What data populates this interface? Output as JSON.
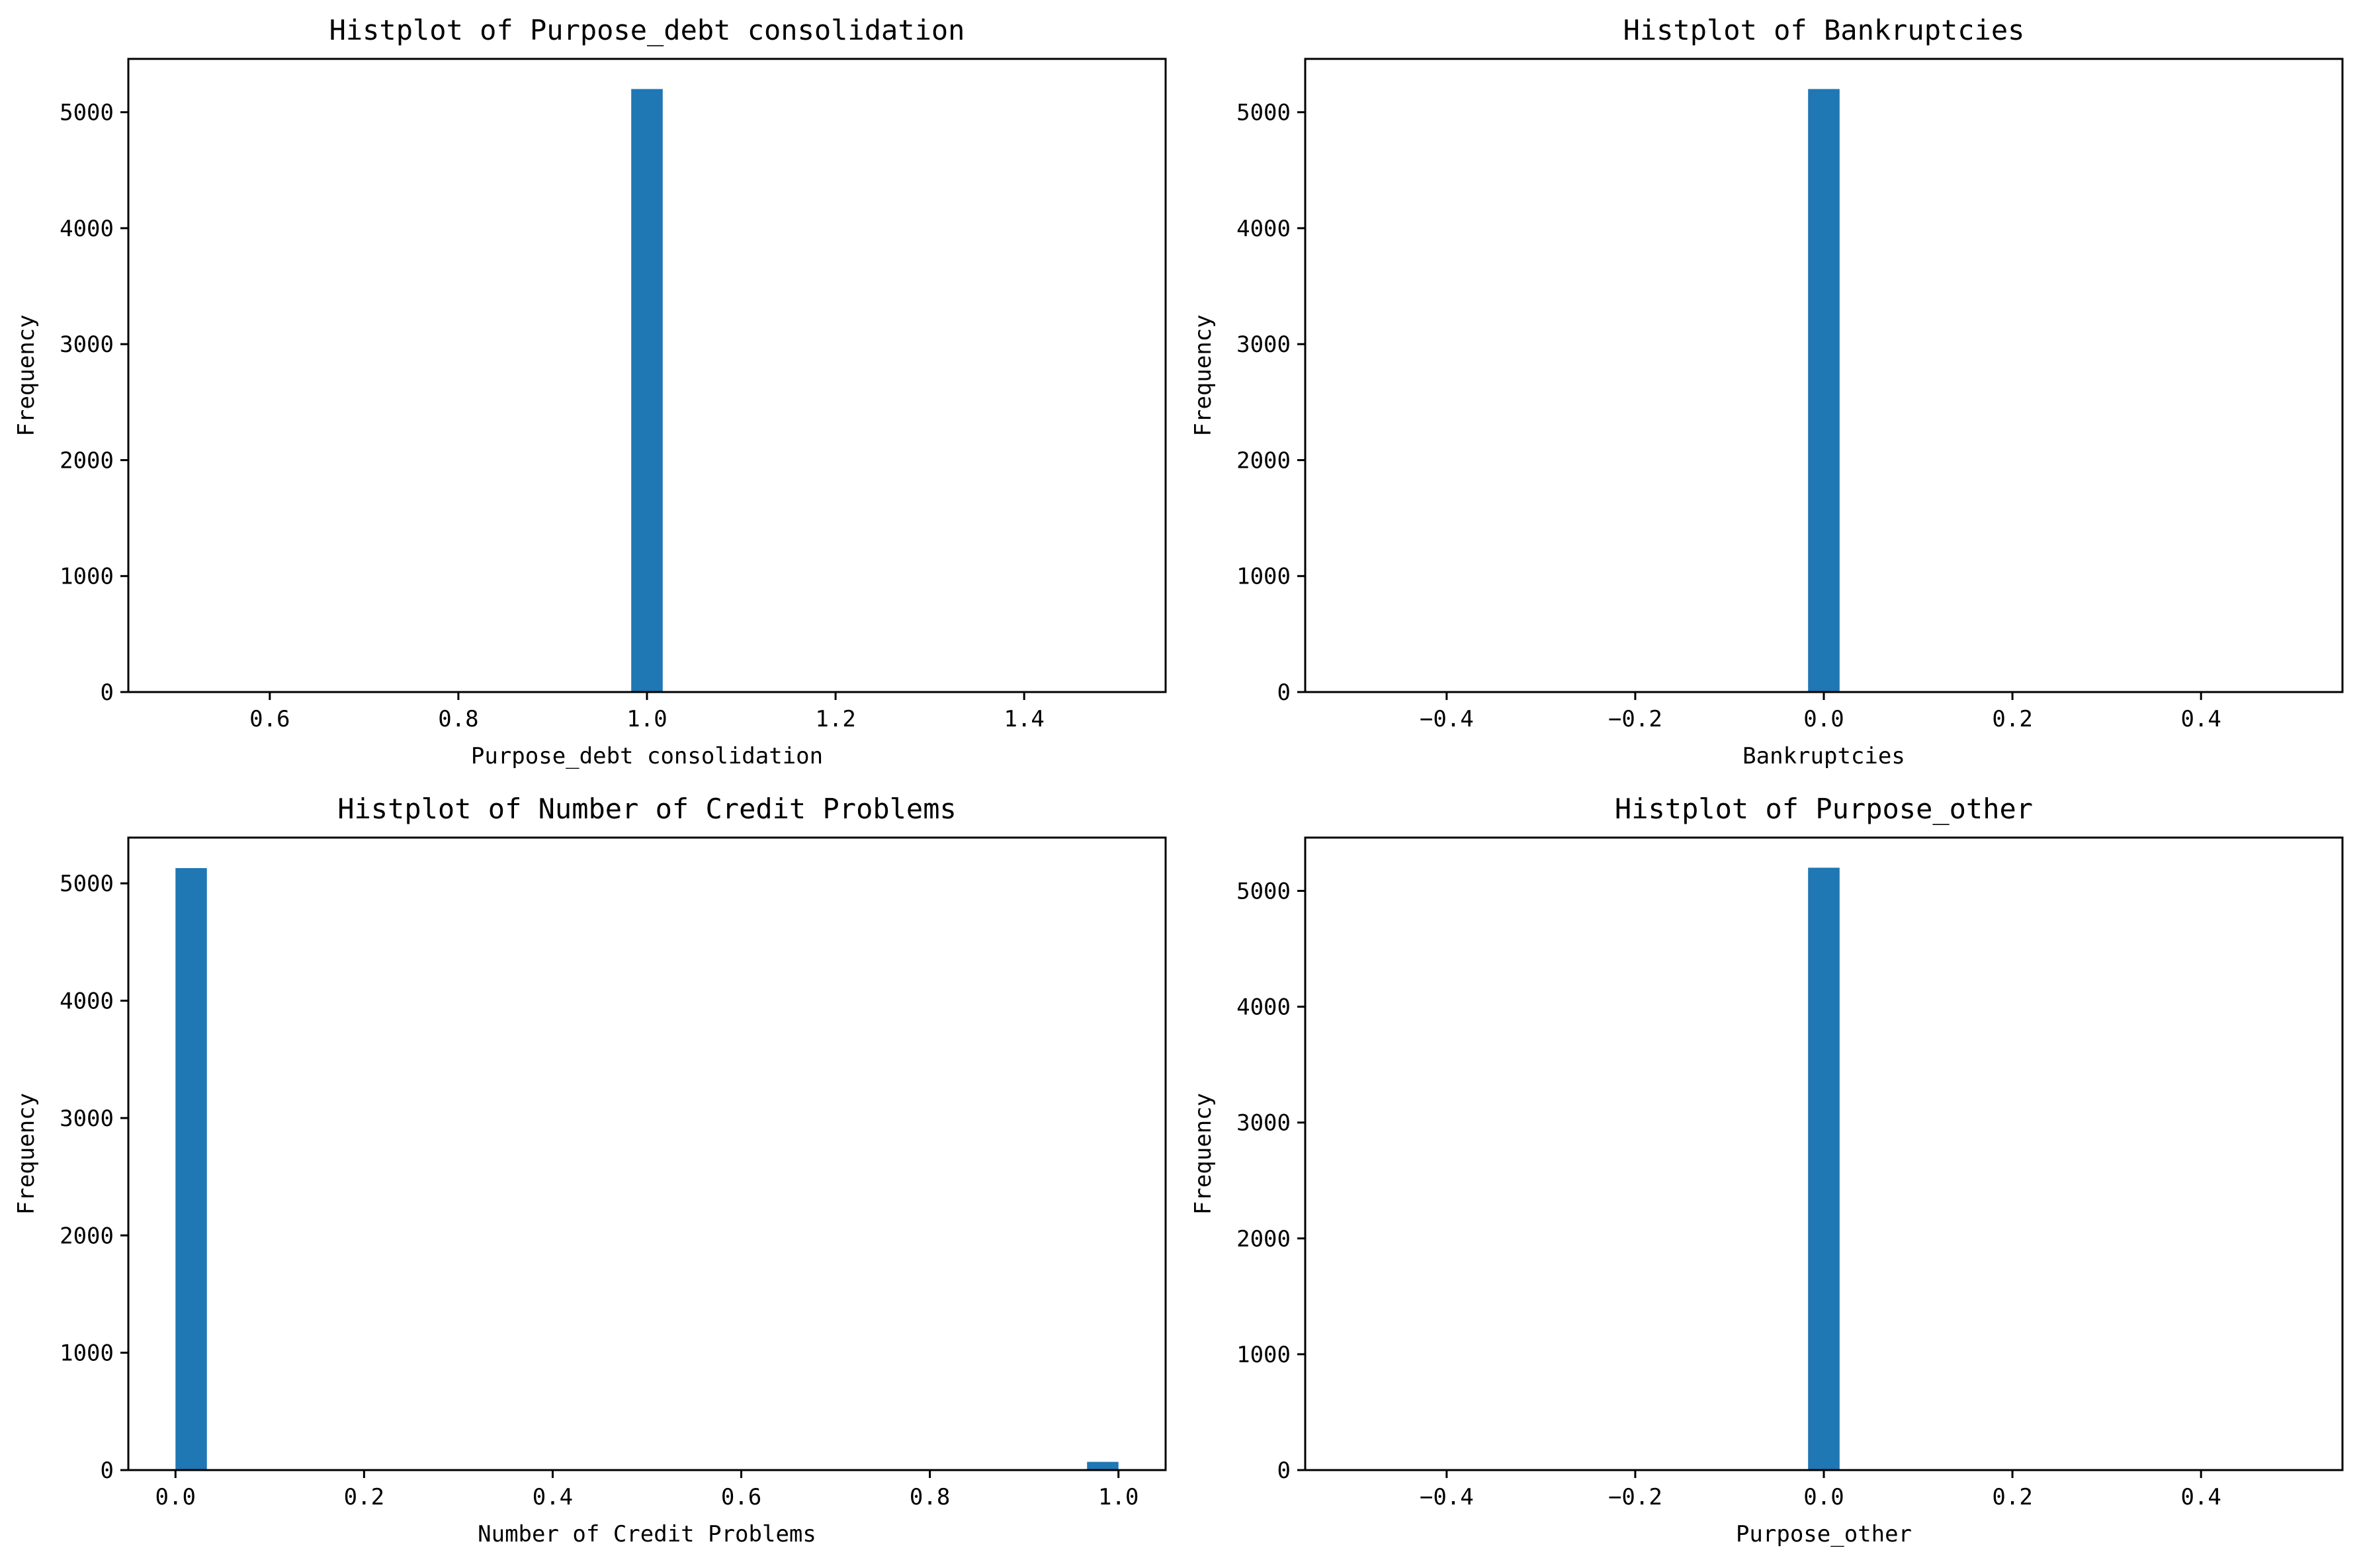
{
  "chart_data": [
    {
      "type": "bar",
      "title": "Histplot of Purpose_debt consolidation",
      "xlabel": "Purpose_debt consolidation",
      "ylabel": "Frequency",
      "xlim": [
        0.45,
        1.55
      ],
      "ylim": [
        0,
        5460
      ],
      "xticks": [
        0.6,
        0.8,
        1.0,
        1.2,
        1.4
      ],
      "xtick_labels": [
        "0.6",
        "0.8",
        "1.0",
        "1.2",
        "1.4"
      ],
      "yticks": [
        0,
        1000,
        2000,
        3000,
        4000,
        5000
      ],
      "ytick_labels": [
        "0",
        "1000",
        "2000",
        "3000",
        "4000",
        "5000"
      ],
      "bars": [
        {
          "x0": 0.9833,
          "x1": 1.0167,
          "value": 5200
        }
      ],
      "color": "#1f77b4",
      "grid": false
    },
    {
      "type": "bar",
      "title": "Histplot of Bankruptcies",
      "xlabel": "Bankruptcies",
      "ylabel": "Frequency",
      "xlim": [
        -0.55,
        0.55
      ],
      "ylim": [
        0,
        5460
      ],
      "xticks": [
        -0.4,
        -0.2,
        0.0,
        0.2,
        0.4
      ],
      "xtick_labels": [
        "−0.4",
        "−0.2",
        "0.0",
        "0.2",
        "0.4"
      ],
      "yticks": [
        0,
        1000,
        2000,
        3000,
        4000,
        5000
      ],
      "ytick_labels": [
        "0",
        "1000",
        "2000",
        "3000",
        "4000",
        "5000"
      ],
      "bars": [
        {
          "x0": -0.0167,
          "x1": 0.0167,
          "value": 5200
        }
      ],
      "color": "#1f77b4",
      "grid": false
    },
    {
      "type": "bar",
      "title": "Histplot of Number of Credit Problems",
      "xlabel": "Number of Credit Problems",
      "ylabel": "Frequency",
      "xlim": [
        -0.05,
        1.05
      ],
      "ylim": [
        0,
        5390
      ],
      "xticks": [
        0.0,
        0.2,
        0.4,
        0.6,
        0.8,
        1.0
      ],
      "xtick_labels": [
        "0.0",
        "0.2",
        "0.4",
        "0.6",
        "0.8",
        "1.0"
      ],
      "yticks": [
        0,
        1000,
        2000,
        3000,
        4000,
        5000
      ],
      "ytick_labels": [
        "0",
        "1000",
        "2000",
        "3000",
        "4000",
        "5000"
      ],
      "bars": [
        {
          "x0": 0.0,
          "x1": 0.0333,
          "value": 5130
        },
        {
          "x0": 0.9667,
          "x1": 1.0,
          "value": 70
        }
      ],
      "color": "#1f77b4",
      "grid": false
    },
    {
      "type": "bar",
      "title": "Histplot of Purpose_other",
      "xlabel": "Purpose_other",
      "ylabel": "Frequency",
      "xlim": [
        -0.55,
        0.55
      ],
      "ylim": [
        0,
        5460
      ],
      "xticks": [
        -0.4,
        -0.2,
        0.0,
        0.2,
        0.4
      ],
      "xtick_labels": [
        "−0.4",
        "−0.2",
        "0.0",
        "0.2",
        "0.4"
      ],
      "yticks": [
        0,
        1000,
        2000,
        3000,
        4000,
        5000
      ],
      "ytick_labels": [
        "0",
        "1000",
        "2000",
        "3000",
        "4000",
        "5000"
      ],
      "bars": [
        {
          "x0": -0.0167,
          "x1": 0.0167,
          "value": 5200
        }
      ],
      "color": "#1f77b4",
      "grid": false
    }
  ]
}
